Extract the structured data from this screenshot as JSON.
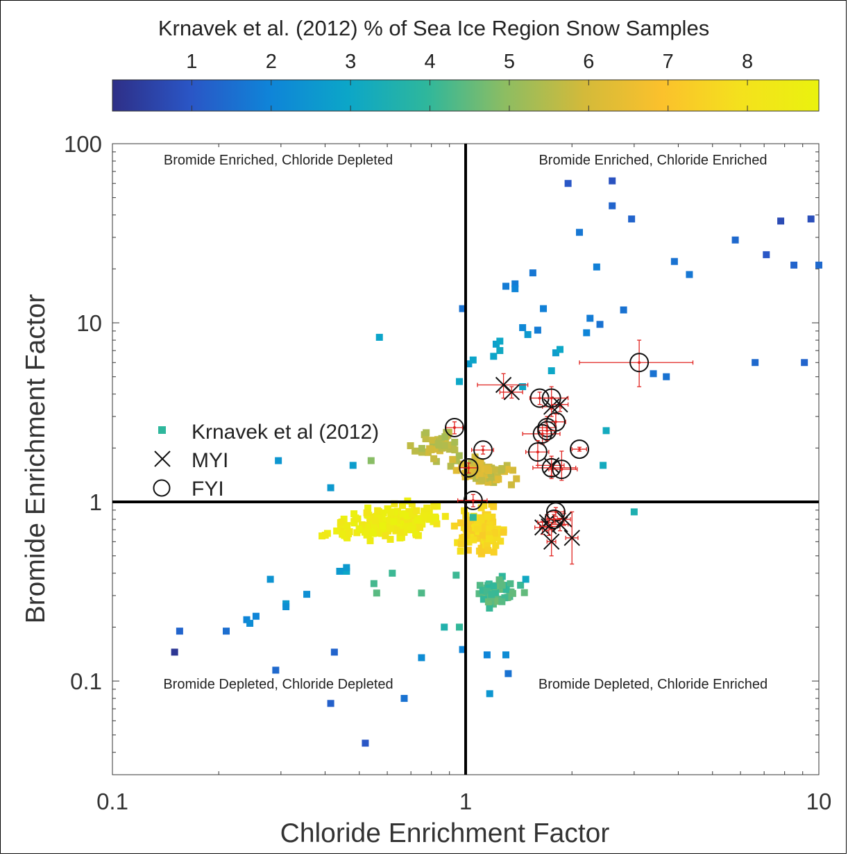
{
  "chart_data": {
    "type": "scatter",
    "xlabel": "Chloride Enrichment Factor",
    "ylabel": "Bromide Enrichment Factor",
    "xscale": "log",
    "yscale": "log",
    "xlim": [
      0.1,
      10
    ],
    "ylim": [
      0.03,
      100
    ],
    "x_ticks": [
      {
        "value": 0.1,
        "label": "0.1"
      },
      {
        "value": 1,
        "label": "1"
      },
      {
        "value": 10,
        "label": "10"
      }
    ],
    "y_ticks": [
      {
        "value": 0.1,
        "label": "0.1"
      },
      {
        "value": 1,
        "label": "1"
      },
      {
        "value": 10,
        "label": "10"
      },
      {
        "value": 100,
        "label": "100"
      }
    ],
    "reference_lines": {
      "x": 1,
      "y": 1
    },
    "grid": false,
    "legend_position": "left",
    "quadrant_labels": {
      "top_left": "Bromide Enriched, Chloride Depleted",
      "top_right": "Bromide Enriched, Chloride Enriched",
      "bottom_left": "Bromide Depleted, Chloride Depleted",
      "bottom_right": "Bromide Depleted, Chloride Enriched"
    },
    "colorbar": {
      "title": "Krnavek et al. (2012) % of Sea Ice Region Snow Samples",
      "range": [
        0,
        8.9
      ],
      "ticks": [
        {
          "value": 1,
          "label": "1"
        },
        {
          "value": 2,
          "label": "2"
        },
        {
          "value": 3,
          "label": "3"
        },
        {
          "value": 4,
          "label": "4"
        },
        {
          "value": 5,
          "label": "5"
        },
        {
          "value": 6,
          "label": "6"
        },
        {
          "value": 7,
          "label": "7"
        },
        {
          "value": 8,
          "label": "8"
        }
      ],
      "colormap": [
        "#2e2f87",
        "#2a56c6",
        "#0f84d8",
        "#0ca6c8",
        "#2eb79c",
        "#8dbd62",
        "#d3ba3a",
        "#fbc12c",
        "#f4e11d",
        "#eaf20e"
      ]
    },
    "legend": [
      {
        "symbol": "square",
        "label": "Krnavek et al (2012)",
        "color": "#2eb79c"
      },
      {
        "symbol": "x",
        "label": "MYI",
        "color": "#000000"
      },
      {
        "symbol": "circle",
        "label": "FYI",
        "color": "#000000"
      }
    ],
    "krnavek_points": [
      [
        0.15,
        0.145,
        0.2
      ],
      [
        0.155,
        0.19,
        1.3
      ],
      [
        0.21,
        0.19,
        1.5
      ],
      [
        0.24,
        0.22,
        2.0
      ],
      [
        0.245,
        0.21,
        2.2
      ],
      [
        0.255,
        0.23,
        2.0
      ],
      [
        0.28,
        0.37,
        2.4
      ],
      [
        0.29,
        0.115,
        1.4
      ],
      [
        0.31,
        0.27,
        2.6
      ],
      [
        0.31,
        0.26,
        2.3
      ],
      [
        0.355,
        0.305,
        2.3
      ],
      [
        0.415,
        0.075,
        1.2
      ],
      [
        0.425,
        0.145,
        1.3
      ],
      [
        0.44,
        0.41,
        2.6
      ],
      [
        0.46,
        0.41,
        3.0
      ],
      [
        0.46,
        0.43,
        2.6
      ],
      [
        0.52,
        0.045,
        1.0
      ],
      [
        0.67,
        0.08,
        1.6
      ],
      [
        0.75,
        0.135,
        2.2
      ],
      [
        0.98,
        0.15,
        2.0
      ],
      [
        0.295,
        1.7,
        2.5
      ],
      [
        0.415,
        1.2,
        2.6
      ],
      [
        0.48,
        1.6,
        2.7
      ],
      [
        0.54,
        1.7,
        4.9
      ],
      [
        0.57,
        8.3,
        2.9
      ],
      [
        0.98,
        12.0,
        1.6
      ],
      [
        0.96,
        4.7,
        3.0
      ],
      [
        1.02,
        5.9,
        2.6
      ],
      [
        1.05,
        6.2,
        2.9
      ],
      [
        1.2,
        6.5,
        2.9
      ],
      [
        1.22,
        7.6,
        2.8
      ],
      [
        1.25,
        7.9,
        3.0
      ],
      [
        1.3,
        16.0,
        1.8
      ],
      [
        1.38,
        16.5,
        1.8
      ],
      [
        1.38,
        15.5,
        2.0
      ],
      [
        1.45,
        9.4,
        2.1
      ],
      [
        1.5,
        8.6,
        2.6
      ],
      [
        1.55,
        19.0,
        1.7
      ],
      [
        1.6,
        9.1,
        1.8
      ],
      [
        1.66,
        12.0,
        1.9
      ],
      [
        1.75,
        5.4,
        3.0
      ],
      [
        1.8,
        6.8,
        2.7
      ],
      [
        1.85,
        7.1,
        3.0
      ],
      [
        1.95,
        60.0,
        1.0
      ],
      [
        2.1,
        32.0,
        1.7
      ],
      [
        2.2,
        8.8,
        2.0
      ],
      [
        2.25,
        10.6,
        1.8
      ],
      [
        2.35,
        20.5,
        1.9
      ],
      [
        2.4,
        9.8,
        1.6
      ],
      [
        2.5,
        2.5,
        3.2
      ],
      [
        2.6,
        62.0,
        0.9
      ],
      [
        2.6,
        45.0,
        1.3
      ],
      [
        2.8,
        11.8,
        1.6
      ],
      [
        2.95,
        38.0,
        1.3
      ],
      [
        3.0,
        0.88,
        3.5
      ],
      [
        3.4,
        5.2,
        1.6
      ],
      [
        3.7,
        5.0,
        1.6
      ],
      [
        3.9,
        22.0,
        1.6
      ],
      [
        4.3,
        18.6,
        1.7
      ],
      [
        5.8,
        29.0,
        1.4
      ],
      [
        6.6,
        6.0,
        1.4
      ],
      [
        7.1,
        24.0,
        1.0
      ],
      [
        7.8,
        37.0,
        0.7
      ],
      [
        8.5,
        21.0,
        1.3
      ],
      [
        9.1,
        6.0,
        1.3
      ],
      [
        9.5,
        38.0,
        0.8
      ],
      [
        10.0,
        21.0,
        1.4
      ],
      [
        2.45,
        1.6,
        3.2
      ],
      [
        1.45,
        4.4,
        3.0
      ],
      [
        1.25,
        7.0,
        3.1
      ],
      [
        1.05,
        0.82,
        4.0
      ],
      [
        1.15,
        0.14,
        2.0
      ],
      [
        1.3,
        0.14,
        2.2
      ],
      [
        1.17,
        0.085,
        2.5
      ],
      [
        1.32,
        0.11,
        1.6
      ],
      [
        1.48,
        0.37,
        3.1
      ],
      [
        0.96,
        0.2,
        4.0
      ],
      [
        0.94,
        0.39,
        4.1
      ],
      [
        0.87,
        0.2,
        3.6
      ],
      [
        0.75,
        0.31,
        4.3
      ],
      [
        0.62,
        0.4,
        4.1
      ],
      [
        0.56,
        0.31,
        4.4
      ],
      [
        0.55,
        0.35,
        4.2
      ]
    ],
    "myi_points": [
      {
        "x": 1.28,
        "y": 4.5,
        "xerr": [
          0.2,
          0.22
        ],
        "yerr": [
          0.7,
          0.7
        ]
      },
      {
        "x": 1.35,
        "y": 4.1,
        "xerr": [
          0.1,
          0.1
        ],
        "yerr": [
          0.3,
          0.3
        ]
      },
      {
        "x": 1.75,
        "y": 3.4,
        "xerr": [
          0.1,
          0.12
        ],
        "yerr": [
          0.4,
          0.4
        ]
      },
      {
        "x": 1.85,
        "y": 3.5,
        "xerr": [
          0.1,
          0.1
        ],
        "yerr": [
          0.3,
          0.3
        ]
      },
      {
        "x": 1.75,
        "y": 1.6,
        "xerr": [
          0.15,
          0.15
        ],
        "yerr": [
          0.2,
          0.2
        ]
      },
      {
        "x": 1.65,
        "y": 0.72,
        "xerr": [
          0.08,
          0.08
        ],
        "yerr": [
          0.06,
          0.06
        ]
      },
      {
        "x": 1.7,
        "y": 0.77,
        "xerr": [
          0.1,
          0.1
        ],
        "yerr": [
          0.08,
          0.08
        ]
      },
      {
        "x": 1.72,
        "y": 0.73,
        "xerr": [
          0.1,
          0.1
        ],
        "yerr": [
          0.08,
          0.08
        ]
      },
      {
        "x": 1.75,
        "y": 0.6,
        "xerr": [
          0.05,
          0.05
        ],
        "yerr": [
          0.1,
          0.1
        ]
      },
      {
        "x": 1.85,
        "y": 0.75,
        "xerr": [
          0.1,
          0.1
        ],
        "yerr": [
          0.06,
          0.06
        ]
      },
      {
        "x": 1.9,
        "y": 0.8,
        "xerr": [
          0.08,
          0.08
        ],
        "yerr": [
          0.06,
          0.06
        ]
      },
      {
        "x": 2.0,
        "y": 0.63,
        "xerr": [
          0.08,
          0.08
        ],
        "yerr": [
          0.18,
          0.25
        ]
      }
    ],
    "fyi_points": [
      {
        "x": 0.93,
        "y": 2.6,
        "xerr": [
          0.05,
          0.05
        ],
        "yerr": [
          0.2,
          0.2
        ]
      },
      {
        "x": 1.12,
        "y": 1.95,
        "xerr": [
          0.08,
          0.08
        ],
        "yerr": [
          0.1,
          0.1
        ]
      },
      {
        "x": 1.02,
        "y": 1.55,
        "xerr": [
          0.06,
          0.06
        ],
        "yerr": [
          0.1,
          0.1
        ]
      },
      {
        "x": 1.05,
        "y": 1.02,
        "xerr": [
          0.1,
          0.1
        ],
        "yerr": [
          0.08,
          0.08
        ]
      },
      {
        "x": 1.62,
        "y": 3.8,
        "xerr": [
          0.1,
          0.1
        ],
        "yerr": [
          0.3,
          0.3
        ]
      },
      {
        "x": 1.75,
        "y": 3.8,
        "xerr": [
          0.1,
          0.2
        ],
        "yerr": [
          0.5,
          0.6
        ]
      },
      {
        "x": 1.7,
        "y": 2.6,
        "xerr": [
          0.1,
          0.1
        ],
        "yerr": [
          0.4,
          0.4
        ]
      },
      {
        "x": 1.8,
        "y": 2.8,
        "xerr": [
          0.12,
          0.12
        ],
        "yerr": [
          0.3,
          0.3
        ]
      },
      {
        "x": 1.65,
        "y": 2.4,
        "xerr": [
          0.2,
          0.2
        ],
        "yerr": [
          0.3,
          0.3
        ]
      },
      {
        "x": 1.7,
        "y": 2.5,
        "xerr": [
          0.1,
          0.1
        ],
        "yerr": [
          0.3,
          0.3
        ]
      },
      {
        "x": 1.6,
        "y": 1.9,
        "xerr": [
          0.12,
          0.12
        ],
        "yerr": [
          0.3,
          0.3
        ]
      },
      {
        "x": 1.75,
        "y": 1.55,
        "xerr": [
          0.2,
          0.3
        ],
        "yerr": [
          0.2,
          0.2
        ]
      },
      {
        "x": 1.87,
        "y": 1.52,
        "xerr": [
          0.15,
          0.2
        ],
        "yerr": [
          0.2,
          0.4
        ]
      },
      {
        "x": 2.1,
        "y": 1.97,
        "xerr": [
          0.1,
          0.1
        ],
        "yerr": [
          0.05,
          0.05
        ]
      },
      {
        "x": 3.1,
        "y": 6.0,
        "xerr": [
          1.0,
          1.3
        ],
        "yerr": [
          1.6,
          2.0
        ]
      },
      {
        "x": 1.8,
        "y": 0.88,
        "xerr": [
          0.1,
          0.1
        ],
        "yerr": [
          0.05,
          0.05
        ]
      },
      {
        "x": 1.78,
        "y": 0.8,
        "xerr": [
          0.1,
          0.1
        ],
        "yerr": [
          0.05,
          0.05
        ]
      }
    ]
  }
}
